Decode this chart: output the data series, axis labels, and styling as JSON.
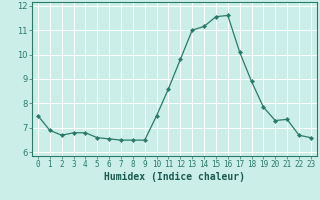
{
  "x": [
    0,
    1,
    2,
    3,
    4,
    5,
    6,
    7,
    8,
    9,
    10,
    11,
    12,
    13,
    14,
    15,
    16,
    17,
    18,
    19,
    20,
    21,
    22,
    23
  ],
  "y": [
    7.5,
    6.9,
    6.7,
    6.8,
    6.8,
    6.6,
    6.55,
    6.5,
    6.5,
    6.5,
    7.5,
    8.6,
    9.8,
    11.0,
    11.15,
    11.55,
    11.6,
    10.1,
    8.9,
    7.85,
    7.3,
    7.35,
    6.7,
    6.6
  ],
  "xlabel": "Humidex (Indice chaleur)",
  "xlim": [
    -0.5,
    23.5
  ],
  "ylim": [
    5.85,
    12.15
  ],
  "yticks": [
    6,
    7,
    8,
    9,
    10,
    11,
    12
  ],
  "xtick_labels": [
    "0",
    "1",
    "2",
    "3",
    "4",
    "5",
    "6",
    "7",
    "8",
    "9",
    "10",
    "11",
    "12",
    "13",
    "14",
    "15",
    "16",
    "17",
    "18",
    "19",
    "20",
    "21",
    "22",
    "23"
  ],
  "line_color": "#2a7a6a",
  "marker_color": "#2a7a6a",
  "bg_color": "#cceee8",
  "grid_color": "#ffffff",
  "axis_color": "#2a7a6a",
  "label_color": "#1a5a50",
  "tick_fontsize": 5.5,
  "xlabel_fontsize": 7.0
}
